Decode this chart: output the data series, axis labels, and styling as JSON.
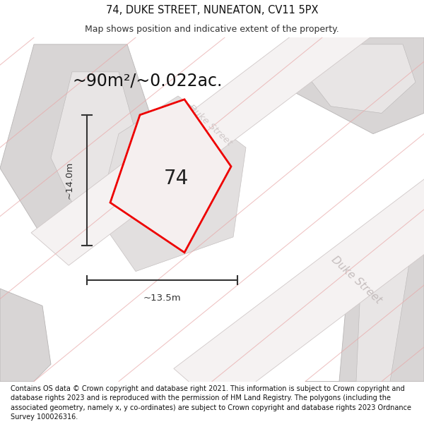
{
  "title": "74, DUKE STREET, NUNEATON, CV11 5PX",
  "subtitle": "Map shows position and indicative extent of the property.",
  "area_label": "~90m²/~0.022ac.",
  "number_label": "74",
  "width_label": "~13.5m",
  "height_label": "~14.0m",
  "footer": "Contains OS data © Crown copyright and database right 2021. This information is subject to Crown copyright and database rights 2023 and is reproduced with the permission of HM Land Registry. The polygons (including the associated geometry, namely x, y co-ordinates) are subject to Crown copyright and database rights 2023 Ordnance Survey 100026316.",
  "map_bg": "#f2f0f0",
  "building_color": "#d8d5d5",
  "building_stroke": "#b8b5b5",
  "plot_fill": "#f5efef",
  "plot_stroke": "#ee0000",
  "street_label_color": "#c0b8b8",
  "dim_color": "#333333",
  "title_fontsize": 10.5,
  "subtitle_fontsize": 9,
  "area_fontsize": 17,
  "number_fontsize": 20,
  "footer_fontsize": 7.0,
  "duke_street_label_1_color": "#c8c0c0",
  "duke_street_label_2_color": "#c0b8b8"
}
